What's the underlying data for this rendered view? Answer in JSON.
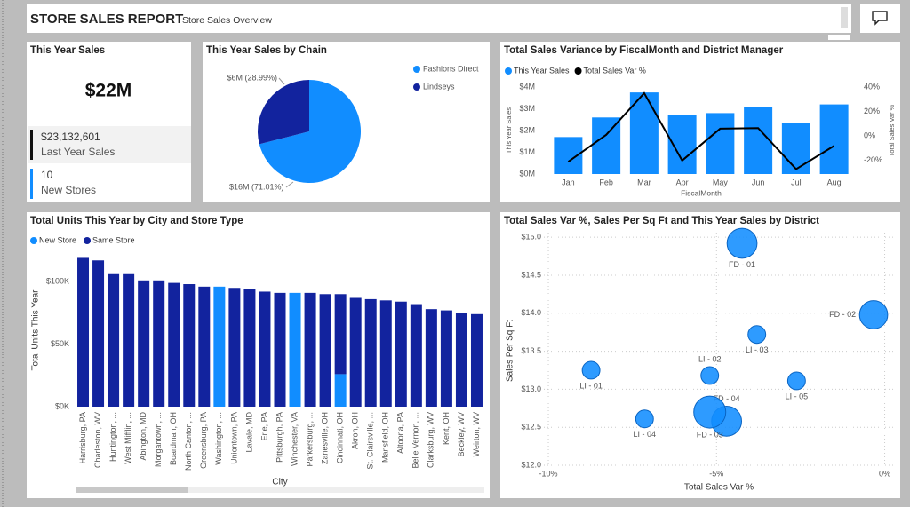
{
  "header": {
    "title": "STORE SALES REPORT",
    "subtitle": "Store Sales Overview"
  },
  "card": {
    "title": "This Year Sales",
    "value": "$22M",
    "kpis": [
      {
        "value": "$23,132,601",
        "label": "Last Year Sales"
      },
      {
        "value": "10",
        "label": "New Stores"
      }
    ]
  },
  "chart_data": [
    {
      "type": "pie",
      "title": "This Year Sales by Chain",
      "categories": [
        "Fashions Direct",
        "Lindseys"
      ],
      "values": [
        71.01,
        28.99
      ],
      "value_labels": [
        "$16M (71.01%)",
        "$6M (28.99%)"
      ],
      "colors": [
        "#118DFF",
        "#12239E"
      ],
      "legend": "top-right"
    },
    {
      "type": "combo",
      "title": "Total Sales Variance by FiscalMonth and District Manager",
      "categories": [
        "Jan",
        "Feb",
        "Mar",
        "Apr",
        "May",
        "Jun",
        "Jul",
        "Aug"
      ],
      "series": [
        {
          "name": "This Year Sales",
          "type": "bar",
          "color": "#118DFF",
          "values": [
            1700000,
            2600000,
            3750000,
            2700000,
            2800000,
            3100000,
            2350000,
            3200000
          ]
        },
        {
          "name": "Total Sales Var %",
          "type": "line",
          "axis": "y2",
          "color": "#000000",
          "values": [
            -21,
            1,
            35,
            -20,
            6,
            6.5,
            -27,
            -8
          ]
        }
      ],
      "xlabel": "FiscalMonth",
      "ylabel": "This Year Sales",
      "y2label": "Total Sales Var %",
      "ylim": [
        0,
        4000000
      ],
      "yticks": [
        {
          "value": 0,
          "label": "$0M"
        },
        {
          "value": 1000000,
          "label": "$1M"
        },
        {
          "value": 2000000,
          "label": "$2M"
        },
        {
          "value": 3000000,
          "label": "$3M"
        },
        {
          "value": 4000000,
          "label": "$4M"
        }
      ],
      "y2lim": [
        -31,
        40
      ],
      "y2ticks": [
        {
          "value": -20,
          "label": "-20%"
        },
        {
          "value": 0,
          "label": "0%"
        },
        {
          "value": 20,
          "label": "20%"
        },
        {
          "value": 40,
          "label": "40%"
        }
      ],
      "legend": "top-left"
    },
    {
      "type": "bar",
      "stacked": true,
      "title": "Total Units This Year by City and Store Type",
      "categories": [
        "Harrisburg, PA",
        "Charleston, WV",
        "Huntington, ...",
        "West Mifflin, ...",
        "Abington, MD",
        "Morgantown, ...",
        "Boardman, OH",
        "North Canton, ...",
        "Greensburg, PA",
        "Washington, ...",
        "Uniontown, PA",
        "Lavale, MD",
        "Erie, PA",
        "Pittsburgh, PA",
        "Winchester, VA",
        "Parkersburg, ...",
        "Zanesville, OH",
        "Cincinnati, OH",
        "Akron, OH",
        "St. Clairsville, ...",
        "Mansfield, OH",
        "Altoona, PA",
        "Belle Vernon, ...",
        "Clarksburg, WV",
        "Kent, OH",
        "Beckley, WV",
        "Weirton, WV"
      ],
      "series": [
        {
          "name": "New Store",
          "color": "#118DFF",
          "values": [
            null,
            null,
            null,
            null,
            null,
            null,
            null,
            null,
            null,
            96000,
            null,
            null,
            null,
            null,
            91000,
            null,
            null,
            26000,
            null,
            null,
            null,
            null,
            null,
            null,
            null,
            null,
            null
          ]
        },
        {
          "name": "Same Store",
          "color": "#12239E",
          "values": [
            119000,
            117000,
            106000,
            106000,
            101000,
            101000,
            99000,
            98000,
            96000,
            null,
            95000,
            94000,
            92000,
            91000,
            null,
            91000,
            90000,
            64000,
            87000,
            86000,
            85000,
            84000,
            82000,
            78000,
            77000,
            75000,
            74000
          ]
        }
      ],
      "xlabel": "City",
      "ylabel": "Total Units This Year",
      "ylim": [
        0,
        125000
      ],
      "yticks": [
        {
          "value": 0,
          "label": "$0K"
        },
        {
          "value": 50000,
          "label": "$50K"
        },
        {
          "value": 100000,
          "label": "$100K"
        }
      ],
      "legend": "top-left"
    },
    {
      "type": "scatter",
      "title": "Total Sales Var %, Sales Per Sq Ft and This Year Sales by District",
      "labels": [
        "FD - 01",
        "FD - 02",
        "LI - 03",
        "LI - 02",
        "LI - 05",
        "LI - 01",
        "LI - 04",
        "FD - 04",
        "FD - 03"
      ],
      "x": [
        -4.24,
        -0.33,
        -3.8,
        -5.2,
        -2.62,
        -8.73,
        -7.14,
        -4.7,
        -5.2
      ],
      "values": [
        14.92,
        13.98,
        13.72,
        13.18,
        13.11,
        13.25,
        12.61,
        12.58,
        12.7
      ],
      "sizes": [
        4300000,
        3800000,
        1500000,
        1500000,
        1500000,
        1500000,
        1500000,
        4300000,
        4900000
      ],
      "color": "#118DFF",
      "xlabel": "Total Sales Var %",
      "ylabel": "Sales Per Sq Ft",
      "xlim": [
        -10.45,
        0.25
      ],
      "xticks": [
        {
          "value": -10,
          "label": "-10%"
        },
        {
          "value": -5,
          "label": "-5%"
        },
        {
          "value": 0,
          "label": "0%"
        }
      ],
      "ylim": [
        12,
        15.06
      ],
      "yticks": [
        {
          "value": 12,
          "label": "$12.0"
        },
        {
          "value": 12.5,
          "label": "$12.5"
        },
        {
          "value": 13,
          "label": "$13.0"
        },
        {
          "value": 13.5,
          "label": "$13.5"
        },
        {
          "value": 14,
          "label": "$14.0"
        },
        {
          "value": 14.5,
          "label": "$14.5"
        },
        {
          "value": 15,
          "label": "$15.0"
        }
      ],
      "grid": true
    }
  ]
}
